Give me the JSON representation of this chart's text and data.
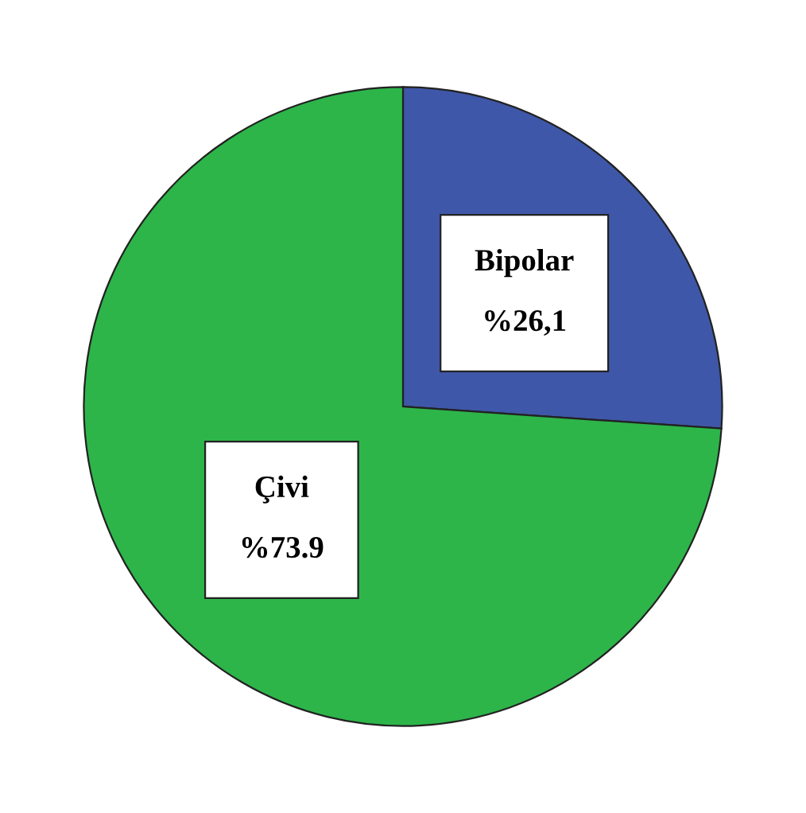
{
  "chart_data": {
    "type": "pie",
    "categories": [
      "Bipolar",
      "Çivi"
    ],
    "values": [
      26.1,
      73.9
    ],
    "colors": [
      "#3f57a8",
      "#2db54a"
    ],
    "value_labels": [
      "%26,1",
      "%73.9"
    ]
  }
}
